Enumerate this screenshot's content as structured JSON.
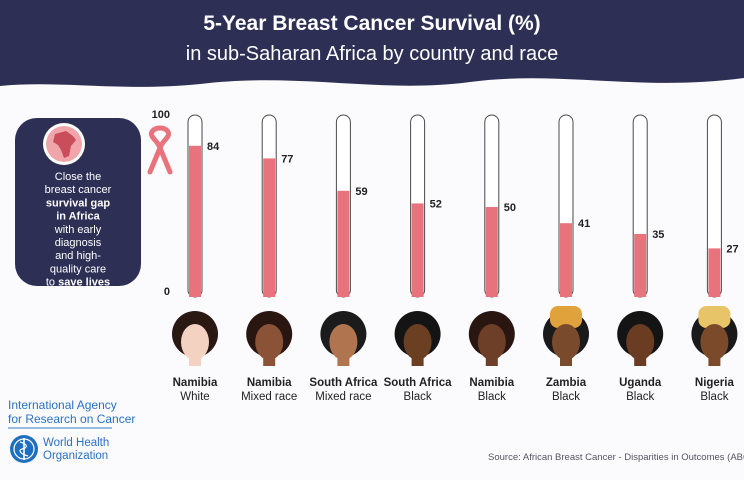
{
  "chart_data": {
    "type": "thermometer",
    "title": "5-Year Breast Cancer Survival (%)",
    "subtitle": "in sub-Saharan Africa by country and race",
    "categories": [
      "Namibia",
      "Namibia",
      "South Africa",
      "South Africa",
      "Namibia",
      "Zambia",
      "Uganda",
      "Nigeria"
    ],
    "subcategories": [
      "White",
      "Mixed race",
      "Mixed race",
      "Black",
      "Black",
      "Black",
      "Black",
      "Black"
    ],
    "values": [
      84,
      77,
      59,
      52,
      50,
      41,
      35,
      27
    ],
    "color": "#e8737c",
    "ylim": [
      0,
      100
    ],
    "yticks": [
      0,
      100
    ],
    "source": "Source: African Breast Cancer - Disparities in Outcomes (ABC-DO)"
  },
  "callout": {
    "lines": [
      [
        {
          "text": "Close the",
          "bold": false
        }
      ],
      [
        {
          "text": "breast cancer",
          "bold": false
        }
      ],
      [
        {
          "text": "survival gap",
          "bold": true
        }
      ],
      [
        {
          "text": "in Africa",
          "bold": true
        }
      ],
      [
        {
          "text": "with early",
          "bold": false
        }
      ],
      [
        {
          "text": "diagnosis",
          "bold": false
        }
      ],
      [
        {
          "text": "and high-",
          "bold": false
        }
      ],
      [
        {
          "text": "quality care",
          "bold": false
        }
      ],
      [
        {
          "text": "to ",
          "bold": false
        },
        {
          "text": "save lives",
          "bold": true
        }
      ]
    ]
  },
  "logos": {
    "iarc": [
      "International Agency",
      "for Research on Cancer"
    ],
    "who": [
      "World Health",
      "Organization"
    ]
  }
}
